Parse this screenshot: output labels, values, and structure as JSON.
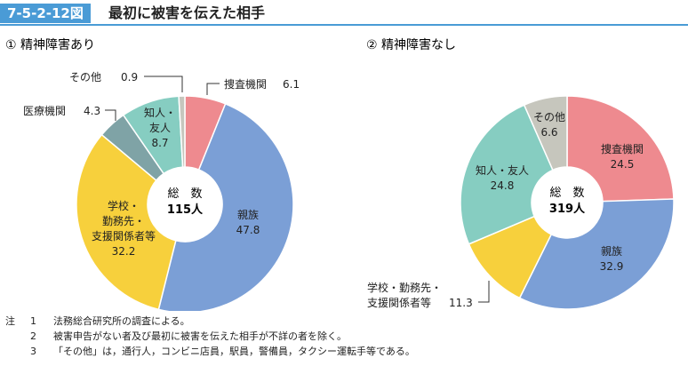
{
  "header": {
    "figure_id": "7-5-2-12図",
    "title": "最初に被害を伝えた相手"
  },
  "chart_data": [
    {
      "type": "pie",
      "title": "① 精神障害あり",
      "center_label": [
        "総　数",
        "115人"
      ],
      "slices": [
        {
          "label": "捜査機関",
          "value": 6.1,
          "color": "#ee8a8f"
        },
        {
          "label": "親族",
          "value": 47.8,
          "color": "#7b9fd6"
        },
        {
          "label": "学校・勤務先・支援関係者等",
          "value": 32.2,
          "color": "#f7d03c"
        },
        {
          "label": "医療機関",
          "value": 4.3,
          "color": "#7fa3a6"
        },
        {
          "label": "知人・友人",
          "value": 8.7,
          "color": "#86cdc1"
        },
        {
          "label": "その他",
          "value": 0.9,
          "color": "#c6c6bd"
        }
      ]
    },
    {
      "type": "pie",
      "title": "② 精神障害なし",
      "center_label": [
        "総　数",
        "319人"
      ],
      "slices": [
        {
          "label": "捜査機関",
          "value": 24.5,
          "color": "#ee8a8f"
        },
        {
          "label": "親族",
          "value": 32.9,
          "color": "#7b9fd6"
        },
        {
          "label": "学校・勤務先・支援関係者等",
          "value": 11.3,
          "color": "#f7d03c"
        },
        {
          "label": "知人・友人",
          "value": 24.8,
          "color": "#86cdc1"
        },
        {
          "label": "その他",
          "value": 6.6,
          "color": "#c6c6bd"
        }
      ]
    }
  ],
  "labels": {
    "c1": {
      "sonota": {
        "name": "その他",
        "value": "0.9"
      },
      "sousa": {
        "name": "捜査機関",
        "value": "6.1"
      },
      "iryo": {
        "name": "医療機関",
        "value": "4.3"
      },
      "chijin": {
        "line1": "知人・",
        "line2": "友人",
        "value": "8.7"
      },
      "shinzoku": {
        "name": "親族",
        "value": "47.8"
      },
      "gakko": {
        "line1": "学校・",
        "line2": "勤務先・",
        "line3": "支援関係者等",
        "value": "32.2"
      }
    },
    "c2": {
      "sonota": {
        "name": "その他",
        "value": "6.6"
      },
      "sousa": {
        "name": "捜査機関",
        "value": "24.5"
      },
      "chijin": {
        "name": "知人・友人",
        "value": "24.8"
      },
      "shinzoku": {
        "name": "親族",
        "value": "32.9"
      },
      "gakko": {
        "line1": "学校・勤務先・",
        "line2": "支援関係者等",
        "value": "11.3"
      }
    }
  },
  "notes": {
    "head": "注",
    "items": [
      {
        "num": "1",
        "text": "法務総合研究所の調査による。"
      },
      {
        "num": "2",
        "text": "被害申告がない者及び最初に被害を伝えた相手が不詳の者を除く。"
      },
      {
        "num": "3",
        "text": "「その他」は，通行人，コンビニ店員，駅員，警備員，タクシー運転手等である。"
      }
    ]
  }
}
